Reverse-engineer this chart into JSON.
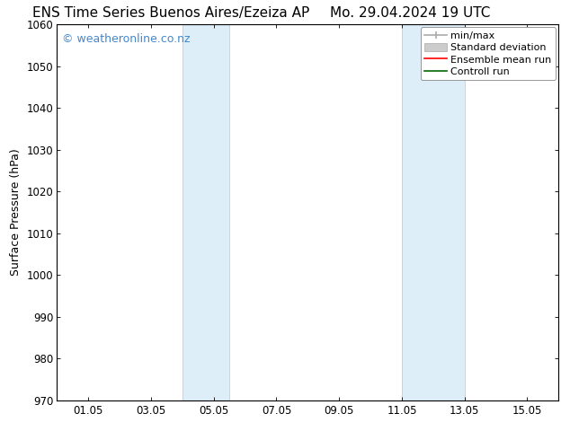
{
  "title_left": "ENS Time Series Buenos Aires/Ezeiza AP",
  "title_right": "Mo. 29.04.2024 19 UTC",
  "ylabel": "Surface Pressure (hPa)",
  "ylim": [
    970,
    1060
  ],
  "yticks": [
    970,
    980,
    990,
    1000,
    1010,
    1020,
    1030,
    1040,
    1050,
    1060
  ],
  "xtick_labels": [
    "01.05",
    "03.05",
    "05.05",
    "07.05",
    "09.05",
    "11.05",
    "13.05",
    "15.05"
  ],
  "xtick_positions": [
    1,
    3,
    5,
    7,
    9,
    11,
    13,
    15
  ],
  "xmin": 0,
  "xmax": 16,
  "shaded_regions": [
    {
      "xmin": 4.0,
      "xmax": 5.5
    },
    {
      "xmin": 11.0,
      "xmax": 13.0
    }
  ],
  "shaded_color": "#ddeef8",
  "shaded_edge_color": "#aaccdd",
  "background_color": "#ffffff",
  "grid_color": "#dddddd",
  "watermark_text": "© weatheronline.co.nz",
  "watermark_color": "#4488cc",
  "legend_items": [
    {
      "label": "min/max",
      "color": "#aaaaaa",
      "lw": 1.5
    },
    {
      "label": "Standard deviation",
      "color": "#cccccc",
      "lw": 6
    },
    {
      "label": "Ensemble mean run",
      "color": "#ff0000",
      "lw": 1.5
    },
    {
      "label": "Controll run",
      "color": "#006600",
      "lw": 1.5
    }
  ],
  "title_fontsize": 11,
  "label_fontsize": 9,
  "tick_fontsize": 8.5,
  "legend_fontsize": 8
}
